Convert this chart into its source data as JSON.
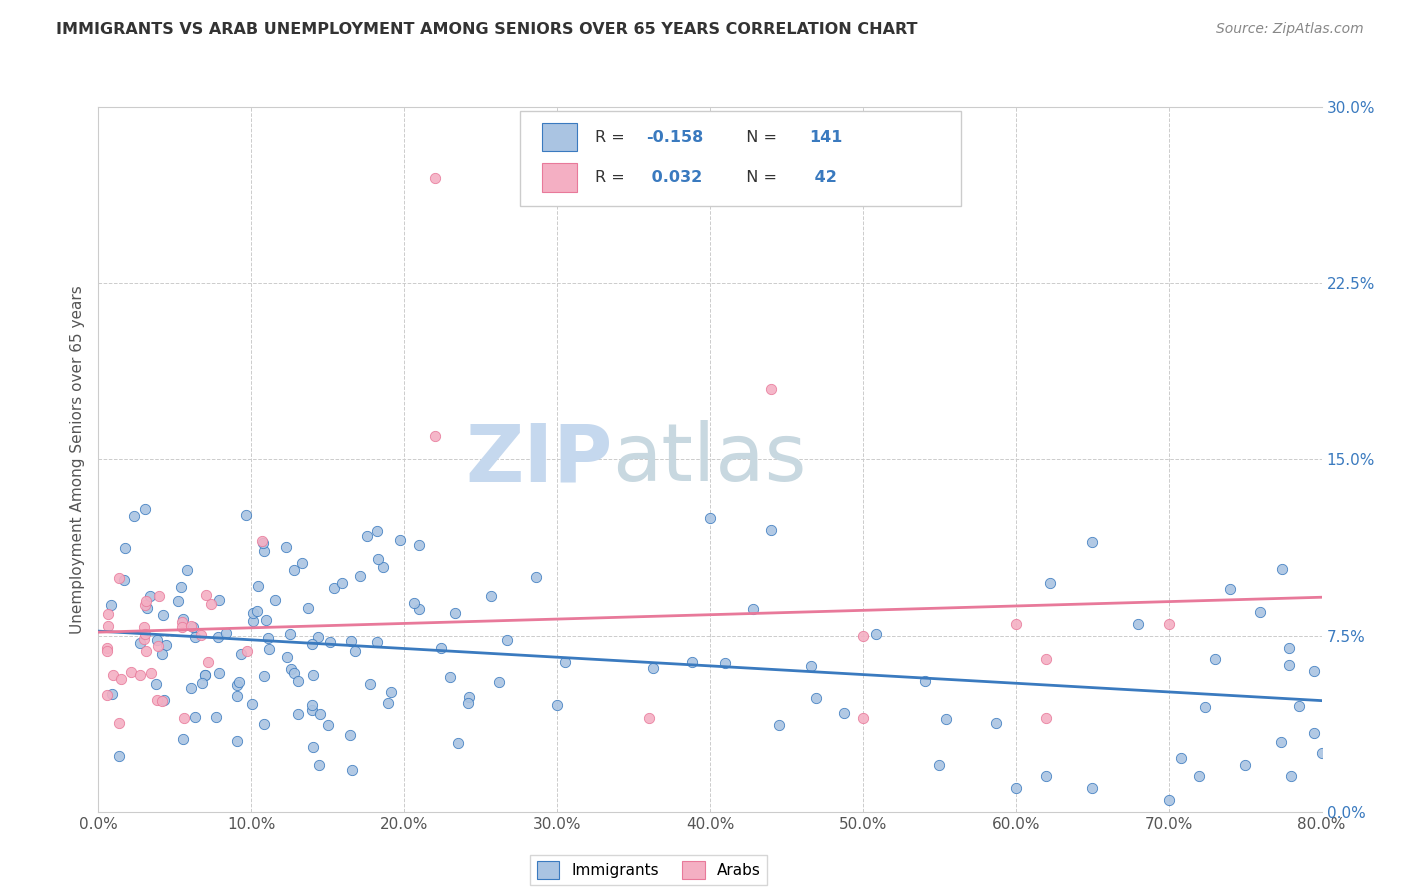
{
  "title": "IMMIGRANTS VS ARAB UNEMPLOYMENT AMONG SENIORS OVER 65 YEARS CORRELATION CHART",
  "source": "Source: ZipAtlas.com",
  "ylabel_label": "Unemployment Among Seniors over 65 years",
  "xlim": [
    0.0,
    0.8
  ],
  "ylim": [
    0.0,
    0.3
  ],
  "immigrants_R": -0.158,
  "immigrants_N": 141,
  "arabs_R": 0.032,
  "arabs_N": 42,
  "immigrants_color": "#aac4e2",
  "arabs_color": "#f4afc3",
  "trend_immigrants_color": "#3a7abf",
  "trend_arabs_color": "#e8799a",
  "label_color": "#3a7abf",
  "watermark_zip_color": "#c5d8ee",
  "watermark_atlas_color": "#c8d8e0",
  "background_color": "#ffffff",
  "grid_color": "#cccccc",
  "title_color": "#333333",
  "tick_color": "#555555"
}
